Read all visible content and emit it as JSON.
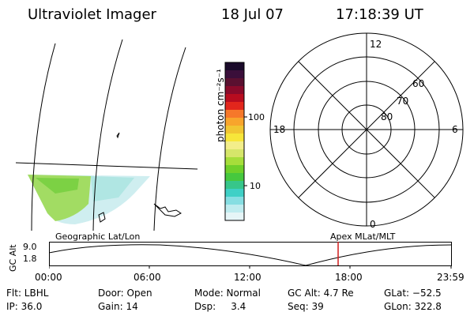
{
  "header": {
    "title": "Ultraviolet Imager",
    "date": "18 Jul 07",
    "time": "17:18:39 UT"
  },
  "colorbar": {
    "label": "photon cm⁻²s⁻¹",
    "ticks": [
      "100",
      "10"
    ],
    "colors": [
      "#1a0a2a",
      "#3a0f3a",
      "#5a1030",
      "#8a0a2a",
      "#b80c1f",
      "#e2261c",
      "#f6782a",
      "#f8a52c",
      "#f1c632",
      "#f7e63a",
      "#f3ee8a",
      "#d6e66a",
      "#a6de3a",
      "#6fd02a",
      "#46c83e",
      "#37c68a",
      "#3fd0c6",
      "#86dee2",
      "#bfecef",
      "#e6f5f7"
    ]
  },
  "polar": {
    "lat_labels": [
      "80",
      "70",
      "60"
    ],
    "mlt_labels": {
      "top": "12",
      "left": "18",
      "right": "6",
      "bottom": "0"
    }
  },
  "map": {
    "label_left": "Geographic Lat/Lon",
    "label_right": "Apex MLat/MLT"
  },
  "timeline": {
    "axis_label": "GC Alt",
    "y_ticks": [
      "9.0",
      "1.8"
    ],
    "x_ticks": [
      "00:00",
      "06:00",
      "12:00",
      "18:00",
      "23:59"
    ],
    "marker_color": "#d11a1a"
  },
  "status": {
    "flt": "Flt: LBHL",
    "ip": "IP: 36.0",
    "door": "Door: Open",
    "gain": "Gain: 14",
    "mode": "Mode: Normal",
    "dsp": "Dsp:     3.4",
    "gc_alt": "GC Alt: 4.7 Re",
    "seq": "Seq: 39",
    "glat": "GLat: −52.5",
    "glon": "GLon: 322.8"
  }
}
